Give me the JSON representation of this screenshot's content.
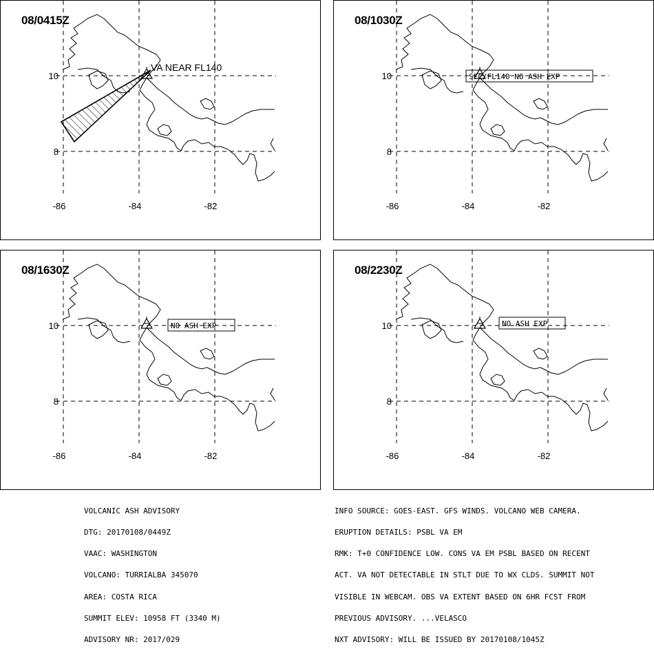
{
  "panels": [
    {
      "time": "08/0415Z",
      "label": "VA NEAR FL140"
    },
    {
      "time": "08/1030Z",
      "label": "SFC/FL140  NO ASH EXP"
    },
    {
      "time": "08/1630Z",
      "label": "NO ASH EXP"
    },
    {
      "time": "08/2230Z",
      "label": "NO ASH EXP"
    }
  ],
  "axes": {
    "lat_labels": [
      "10",
      "8"
    ],
    "lon_labels": [
      "-86",
      "-84",
      "-82"
    ]
  },
  "advisory_left": [
    "VOLCANIC ASH ADVISORY",
    "DTG: 20170108/0449Z",
    "VAAC: WASHINGTON",
    "VOLCANO: TURRIALBA 345070",
    "AREA: COSTA RICA",
    "SUMMIT ELEV: 10958 FT (3340 M)",
    "ADVISORY NR: 2017/029"
  ],
  "advisory_right": [
    "INFO SOURCE: GOES-EAST. GFS WINDS. VOLCANO WEB CAMERA.",
    "ERUPTION DETAILS: PSBL VA EM",
    "RMK: T+0 CONFIDENCE LOW. CONS VA EM PSBL BASED ON RECENT",
    "ACT. VA NOT DETECTABLE IN STLT DUE TO WX CLDS. SUMMIT NOT",
    "VISIBLE IN WEBCAM. OBS VA EXTENT BASED ON 6HR FCST FROM",
    "PREVIOUS ADVISORY. ...VELASCO",
    "NXT ADVISORY: WILL BE ISSUED BY 20170108/1045Z"
  ],
  "colors": {
    "line": "#000000",
    "background": "#ffffff"
  }
}
